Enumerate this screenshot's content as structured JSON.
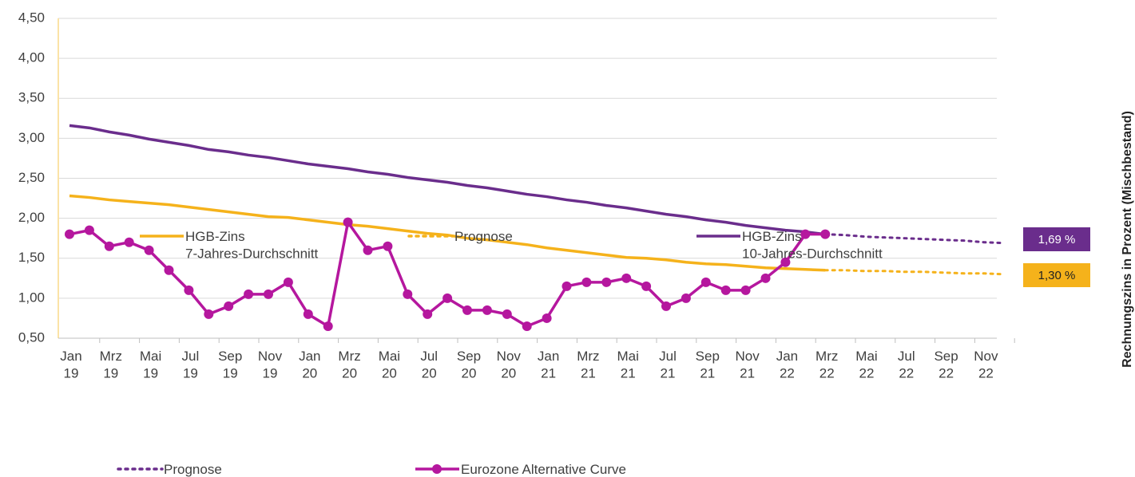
{
  "chart_data": {
    "type": "line",
    "y_axis_title": "Rechnungszins in Prozent (Mischbestand)",
    "categories": [
      "Jan 19",
      null,
      "Mrz 19",
      null,
      "Mai 19",
      null,
      "Jul 19",
      null,
      "Sep 19",
      null,
      "Nov 19",
      null,
      "Jan 20",
      null,
      "Mrz 20",
      null,
      "Mai 20",
      null,
      "Jul 20",
      null,
      "Sep 20",
      null,
      "Nov 20",
      null,
      "Jan 21",
      null,
      "Mrz 21",
      null,
      "Mai 21",
      null,
      "Jul 21",
      null,
      "Sep 21",
      null,
      "Nov 21",
      null,
      "Jan 22",
      null,
      "Mrz 22",
      null,
      "Mai 22",
      null,
      "Jul 22",
      null,
      "Sep 22",
      null,
      "Nov 22",
      null
    ],
    "ylim": [
      0.5,
      4.5
    ],
    "yticks": [
      {
        "value": 0.5,
        "label": "0,50"
      },
      {
        "value": 1,
        "label": "1,00"
      },
      {
        "value": 1.5,
        "label": "1,50"
      },
      {
        "value": 2,
        "label": "2,00"
      },
      {
        "value": 2.5,
        "label": "2,50"
      },
      {
        "value": 3,
        "label": "3,00"
      },
      {
        "value": 3.5,
        "label": "3,50"
      },
      {
        "value": 4,
        "label": "4,00"
      },
      {
        "value": 4.5,
        "label": "4,50"
      }
    ],
    "grid": true,
    "series": [
      {
        "name": "HGB-Zins\n7-Jahres-Durchschnitt",
        "color": "#f5b21b",
        "dash": "solid",
        "marker": false,
        "values": [
          2.28,
          2.26,
          2.23,
          2.21,
          2.19,
          2.17,
          2.14,
          2.11,
          2.08,
          2.05,
          2.02,
          2.01,
          1.98,
          1.95,
          1.92,
          1.9,
          1.87,
          1.84,
          1.81,
          1.79,
          1.75,
          1.73,
          1.7,
          1.67,
          1.63,
          1.6,
          1.57,
          1.54,
          1.51,
          1.5,
          1.48,
          1.45,
          1.43,
          1.42,
          1.4,
          1.38,
          1.37,
          1.36,
          1.35,
          null,
          null,
          null,
          null,
          null,
          null,
          null,
          null,
          null
        ]
      },
      {
        "name": "Prognose",
        "color": "#f5b21b",
        "dash": "dotted",
        "marker": false,
        "values": [
          null,
          null,
          null,
          null,
          null,
          null,
          null,
          null,
          null,
          null,
          null,
          null,
          null,
          null,
          null,
          null,
          null,
          null,
          null,
          null,
          null,
          null,
          null,
          null,
          null,
          null,
          null,
          null,
          null,
          null,
          null,
          null,
          null,
          null,
          null,
          null,
          null,
          null,
          1.35,
          1.35,
          1.34,
          1.34,
          1.33,
          1.33,
          1.32,
          1.31,
          1.31,
          1.3
        ]
      },
      {
        "name": "HGB-Zins\n10-Jahres-Durchschnitt",
        "color": "#6a2d8c",
        "dash": "solid",
        "marker": false,
        "values": [
          3.16,
          3.13,
          3.08,
          3.04,
          2.99,
          2.95,
          2.91,
          2.86,
          2.83,
          2.79,
          2.76,
          2.72,
          2.68,
          2.65,
          2.62,
          2.58,
          2.55,
          2.51,
          2.48,
          2.45,
          2.41,
          2.38,
          2.34,
          2.3,
          2.27,
          2.23,
          2.2,
          2.16,
          2.13,
          2.09,
          2.05,
          2.02,
          1.98,
          1.95,
          1.91,
          1.88,
          1.85,
          1.83,
          1.8,
          null,
          null,
          null,
          null,
          null,
          null,
          null,
          null,
          null
        ]
      },
      {
        "name": "Prognose",
        "color": "#6a2d8c",
        "dash": "dotted",
        "marker": false,
        "values": [
          null,
          null,
          null,
          null,
          null,
          null,
          null,
          null,
          null,
          null,
          null,
          null,
          null,
          null,
          null,
          null,
          null,
          null,
          null,
          null,
          null,
          null,
          null,
          null,
          null,
          null,
          null,
          null,
          null,
          null,
          null,
          null,
          null,
          null,
          null,
          null,
          null,
          null,
          1.8,
          1.79,
          1.77,
          1.76,
          1.75,
          1.74,
          1.73,
          1.72,
          1.7,
          1.69
        ]
      },
      {
        "name": "Eurozone Alternative Curve",
        "color": "#b5179e",
        "dash": "solid",
        "marker": true,
        "values": [
          1.8,
          1.85,
          1.65,
          1.7,
          1.6,
          1.35,
          1.1,
          0.8,
          0.9,
          1.05,
          1.05,
          1.2,
          0.8,
          0.65,
          1.95,
          1.6,
          1.65,
          1.05,
          0.8,
          1.0,
          0.85,
          0.85,
          0.8,
          0.65,
          0.75,
          1.15,
          1.2,
          1.2,
          1.25,
          1.15,
          0.9,
          1.0,
          1.2,
          1.1,
          1.1,
          1.25,
          1.45,
          1.8,
          1.8,
          null,
          null,
          null,
          null,
          null,
          null,
          null,
          null,
          null
        ]
      }
    ],
    "annotations": [
      {
        "text": "1,69 %",
        "value": 1.69,
        "color": "#6a2d8c"
      },
      {
        "text": "1,30 %",
        "value": 1.3,
        "color": "#f5b21b"
      }
    ]
  }
}
